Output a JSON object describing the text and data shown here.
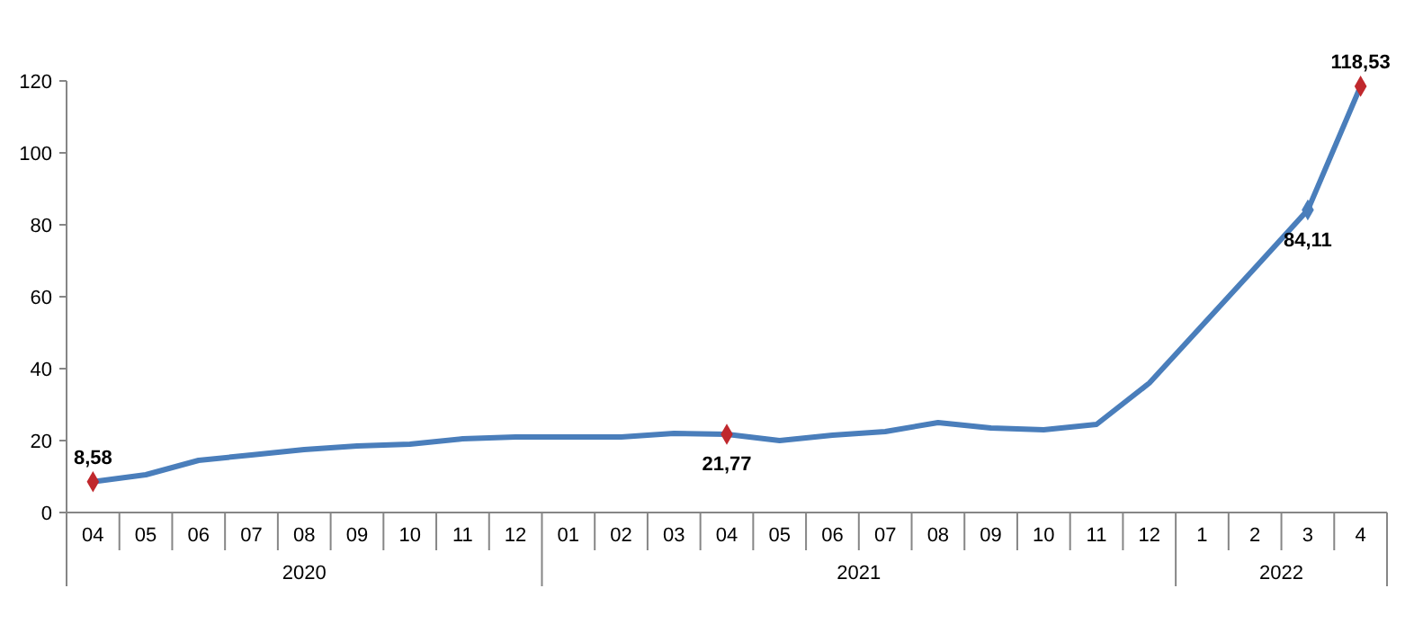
{
  "chart_data": {
    "type": "line",
    "categories": [
      "04",
      "05",
      "06",
      "07",
      "08",
      "09",
      "10",
      "11",
      "12",
      "01",
      "02",
      "03",
      "04",
      "05",
      "06",
      "07",
      "08",
      "09",
      "10",
      "11",
      "12",
      "1",
      "2",
      "3",
      "4"
    ],
    "series": [
      {
        "color": "#4a7ebb",
        "marker": "none",
        "values": [
          8.58,
          10.5,
          14.5,
          16,
          17.5,
          18.5,
          19,
          20.5,
          21,
          21,
          21,
          22,
          21.77,
          20,
          21.5,
          22.5,
          25,
          23.5,
          23,
          24.5,
          36,
          52,
          68,
          84.11,
          118.53
        ]
      },
      {
        "type": "scatter",
        "marker": "diamond",
        "colors": [
          "#c0282d",
          null,
          null,
          null,
          null,
          null,
          null,
          null,
          null,
          null,
          null,
          null,
          "#c0282d",
          null,
          null,
          null,
          null,
          null,
          null,
          null,
          null,
          null,
          null,
          "#4a7ebb",
          "#c0282d"
        ],
        "values": [
          8.58,
          null,
          null,
          null,
          null,
          null,
          null,
          null,
          null,
          null,
          null,
          null,
          21.77,
          null,
          null,
          null,
          null,
          null,
          null,
          null,
          null,
          null,
          null,
          84.11,
          118.53
        ],
        "value_labels": [
          "8,58",
          null,
          null,
          null,
          null,
          null,
          null,
          null,
          null,
          null,
          null,
          null,
          "21,77",
          null,
          null,
          null,
          null,
          null,
          null,
          null,
          null,
          null,
          null,
          "84,11",
          "118,53"
        ]
      }
    ],
    "annotations": [
      "2020",
      "2021",
      "2022"
    ],
    "ylim": [
      0,
      120
    ],
    "yticks": [
      0,
      20,
      40,
      60,
      80,
      100,
      120
    ],
    "line_style": "solid",
    "grid": false
  }
}
